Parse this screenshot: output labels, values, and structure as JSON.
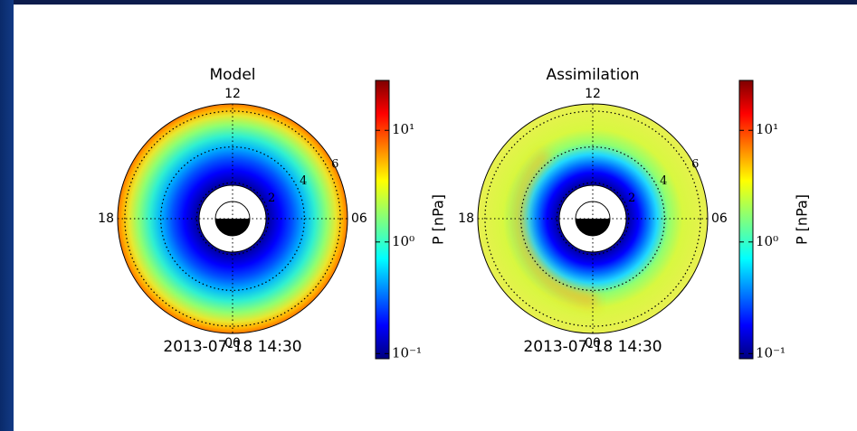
{
  "chart_data": [
    {
      "type": "polar-heatmap",
      "title": "Model",
      "timestamp": "2013-07-18 14:30",
      "theta_labels": [
        "12",
        "06",
        "00",
        "18"
      ],
      "rlim": [
        0,
        6.4
      ],
      "rticks": [
        2,
        4,
        6
      ],
      "grid": true,
      "colorbar": {
        "label": "P [nPa]",
        "scale": "log",
        "lim": [
          0.09,
          28
        ],
        "ticks": [
          {
            "value": 0.1,
            "label": "10⁻¹"
          },
          {
            "value": 1,
            "label": "10⁰"
          },
          {
            "value": 10,
            "label": "10¹"
          }
        ]
      }
    },
    {
      "type": "polar-heatmap",
      "title": "Assimilation",
      "timestamp": "2013-07-18 14:30",
      "theta_labels": [
        "12",
        "06",
        "00",
        "18"
      ],
      "rlim": [
        0,
        6.4
      ],
      "rticks": [
        2,
        4,
        6
      ],
      "grid": true,
      "colorbar": {
        "label": "P [nPa]",
        "scale": "log",
        "lim": [
          0.09,
          28
        ],
        "ticks": [
          {
            "value": 0.1,
            "label": "10⁻¹"
          },
          {
            "value": 1,
            "label": "10⁰"
          },
          {
            "value": 10,
            "label": "10¹"
          }
        ]
      }
    }
  ]
}
